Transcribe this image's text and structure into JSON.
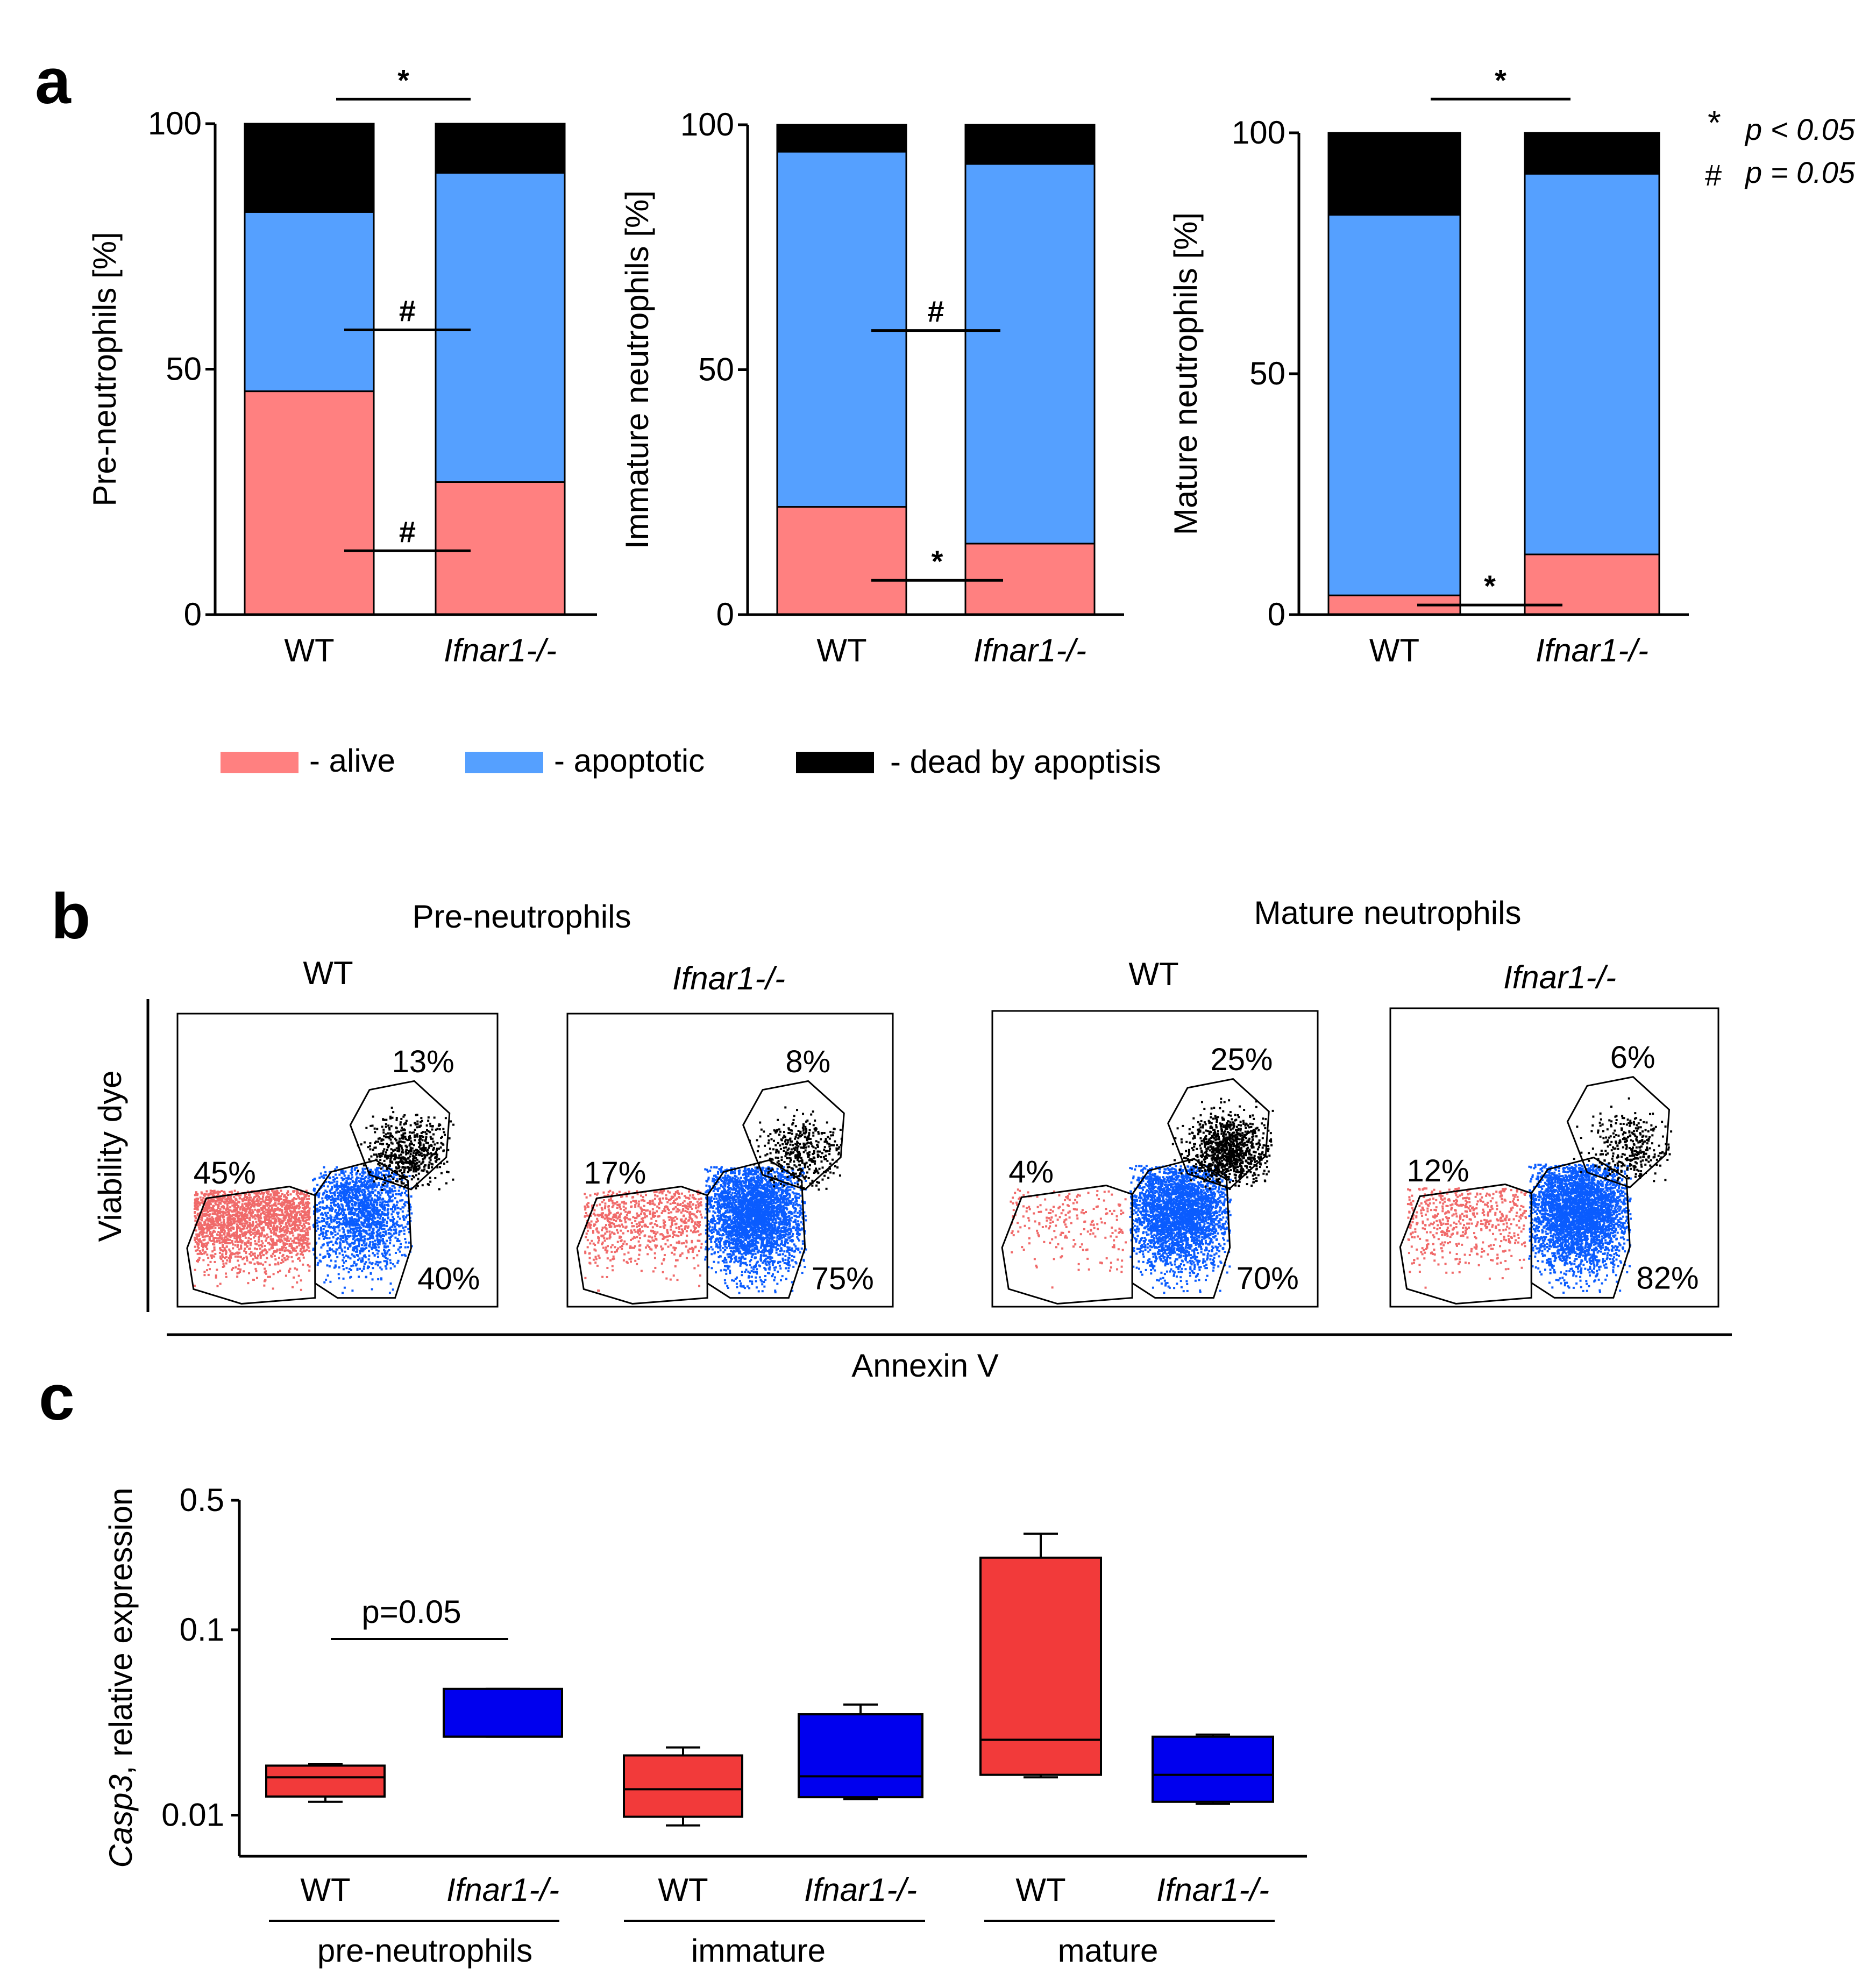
{
  "panels": {
    "a": "a",
    "b": "b",
    "c": "c"
  },
  "colors": {
    "alive": "#ff8080",
    "apoptotic": "#55a0ff",
    "dead": "#000000",
    "wt_box": "#f23a3a",
    "ko_box": "#0000ee",
    "facs_alive": "#f06a6a",
    "facs_apoptotic": "#0a5cff",
    "facs_dead": "#000000"
  },
  "significance_legend": [
    {
      "symbol": "*",
      "label": "p < 0.05"
    },
    {
      "symbol": "#",
      "label": "p = 0.05"
    }
  ],
  "legend": [
    {
      "key": "alive",
      "label": "- alive"
    },
    {
      "key": "apoptotic",
      "label": "- apoptotic"
    },
    {
      "key": "dead",
      "label": "- dead by apoptisis"
    }
  ],
  "chart_data": [
    {
      "id": "a1",
      "type": "bar",
      "stacked": true,
      "ylabel": "Pre-neutrophils [%]",
      "ylim": [
        0,
        100
      ],
      "yticks": [
        "0",
        "50",
        "100"
      ],
      "categories": [
        "WT",
        "Ifnar1-/-"
      ],
      "series": [
        {
          "name": "alive",
          "values": [
            45.5,
            27
          ]
        },
        {
          "name": "apoptotic",
          "values": [
            36.5,
            63
          ]
        },
        {
          "name": "dead by apoptisis",
          "values": [
            18,
            10
          ]
        }
      ],
      "annotations": [
        {
          "symbol": "*",
          "level": 105
        },
        {
          "symbol": "#",
          "level": 58
        },
        {
          "symbol": "#",
          "level": 13
        }
      ]
    },
    {
      "id": "a2",
      "type": "bar",
      "stacked": true,
      "ylabel": "Immature neutrophils [%]",
      "ylim": [
        0,
        100
      ],
      "yticks": [
        "0",
        "50",
        "100"
      ],
      "categories": [
        "WT",
        "Ifnar1-/-"
      ],
      "series": [
        {
          "name": "alive",
          "values": [
            22,
            14.5
          ]
        },
        {
          "name": "apoptotic",
          "values": [
            72.5,
            77.5
          ]
        },
        {
          "name": "dead by apoptisis",
          "values": [
            5.5,
            8
          ]
        }
      ],
      "annotations": [
        {
          "symbol": "#",
          "level": 58
        },
        {
          "symbol": "*",
          "level": 7
        }
      ]
    },
    {
      "id": "a3",
      "type": "bar",
      "stacked": true,
      "ylabel": "Mature neutrophils [%]",
      "ylim": [
        0,
        100
      ],
      "yticks": [
        "0",
        "50",
        "100"
      ],
      "categories": [
        "WT",
        "Ifnar1-/-"
      ],
      "series": [
        {
          "name": "alive",
          "values": [
            4,
            12.5
          ]
        },
        {
          "name": "apoptotic",
          "values": [
            79,
            79
          ]
        },
        {
          "name": "dead by apoptisis",
          "values": [
            17,
            8.5
          ]
        }
      ],
      "annotations": [
        {
          "symbol": "*",
          "level": 107
        },
        {
          "symbol": "*",
          "level": 2
        }
      ]
    },
    {
      "id": "c",
      "type": "box",
      "ylabel_italic": "Casp3",
      "ylabel": ", relative expression",
      "yscale": "log",
      "ylim": [
        0.006,
        0.5
      ],
      "yticks": [
        {
          "value": 0.01,
          "label": "0.01"
        },
        {
          "value": 0.1,
          "label": "0.1"
        },
        {
          "value": 0.5,
          "label": "0.5"
        }
      ],
      "groups": [
        "pre-neutrophils",
        "immature",
        "mature"
      ],
      "categories": [
        "WT",
        "Ifnar1-/-",
        "WT",
        "Ifnar1-/-",
        "WT",
        "Ifnar1-/-"
      ],
      "boxes": [
        {
          "group": "pre-neutrophils",
          "genotype": "WT",
          "min": 0.0118,
          "q1": 0.0126,
          "median": 0.016,
          "q3": 0.0185,
          "max": 0.0188
        },
        {
          "group": "pre-neutrophils",
          "genotype": "Ifnar1-/-",
          "min": 0.0265,
          "q1": 0.0265,
          "median": 0.0265,
          "q3": 0.048,
          "max": 0.048
        },
        {
          "group": "immature",
          "genotype": "WT",
          "min": 0.0088,
          "q1": 0.0098,
          "median": 0.0138,
          "q3": 0.021,
          "max": 0.0232
        },
        {
          "group": "immature",
          "genotype": "Ifnar1-/-",
          "min": 0.0122,
          "q1": 0.0125,
          "median": 0.0162,
          "q3": 0.035,
          "max": 0.0395
        },
        {
          "group": "mature",
          "genotype": "WT",
          "min": 0.016,
          "q1": 0.0165,
          "median": 0.0255,
          "q3": 0.245,
          "max": 0.33
        },
        {
          "group": "mature",
          "genotype": "Ifnar1-/-",
          "min": 0.0115,
          "q1": 0.0118,
          "median": 0.0165,
          "q3": 0.0265,
          "max": 0.0272
        }
      ],
      "annotation": "p=0.05"
    }
  ],
  "facs": {
    "xlabel": "Annexin V",
    "ylabel": "Viability dye",
    "groups": [
      {
        "title": "Pre-neutrophils",
        "plots": [
          {
            "genotype": "WT",
            "italic": false,
            "alive": "45%",
            "apoptotic": "40%",
            "dead": "13%"
          },
          {
            "genotype": "Ifnar1-/-",
            "italic": true,
            "alive": "17%",
            "apoptotic": "75%",
            "dead": "8%"
          }
        ]
      },
      {
        "title": "Mature neutrophils",
        "plots": [
          {
            "genotype": "WT",
            "italic": false,
            "alive": "4%",
            "apoptotic": "70%",
            "dead": "25%"
          },
          {
            "genotype": "Ifnar1-/-",
            "italic": true,
            "alive": "12%",
            "apoptotic": "82%",
            "dead": "6%"
          }
        ]
      }
    ]
  }
}
